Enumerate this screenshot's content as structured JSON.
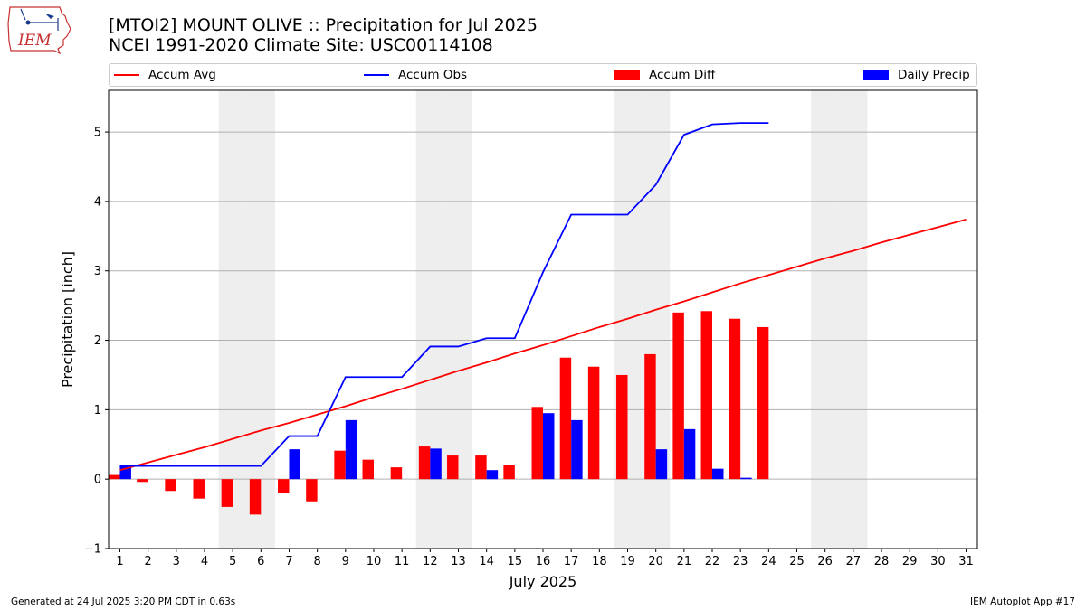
{
  "header": {
    "title_line1": "[MTOI2] MOUNT OLIVE :: Precipitation for Jul 2025",
    "title_line2": "NCEI 1991-2020 Climate Site: USC00114108",
    "logo_text": "IEM"
  },
  "legend": {
    "accum_avg": "Accum Avg",
    "accum_obs": "Accum Obs",
    "accum_diff": "Accum Diff",
    "daily_precip": "Daily Precip"
  },
  "colors": {
    "accum_avg": "#ff0000",
    "accum_obs": "#0000ff",
    "accum_diff": "#ff0000",
    "daily_precip": "#0000ff",
    "weekend_shade": "#eeeeee",
    "grid": "#b0b0b0"
  },
  "chart_data": {
    "type": "bar",
    "xlabel": "July 2025",
    "ylabel": "Precipitation [inch]",
    "x": [
      1,
      2,
      3,
      4,
      5,
      6,
      7,
      8,
      9,
      10,
      11,
      12,
      13,
      14,
      15,
      16,
      17,
      18,
      19,
      20,
      21,
      22,
      23,
      24,
      25,
      26,
      27,
      28,
      29,
      30,
      31
    ],
    "ylim": [
      -1,
      5.6
    ],
    "yticks": [
      -1,
      0,
      1,
      2,
      3,
      4,
      5
    ],
    "ytick_labels": [
      "−1",
      "0",
      "1",
      "2",
      "3",
      "4",
      "5"
    ],
    "grid": "y",
    "legend_position": "top",
    "shaded_days": [
      5,
      6,
      12,
      13,
      19,
      20,
      26,
      27
    ],
    "series": [
      {
        "name": "Accum Avg",
        "kind": "line",
        "x": [
          1,
          2,
          3,
          4,
          5,
          6,
          7,
          8,
          9,
          10,
          11,
          12,
          13,
          14,
          15,
          16,
          17,
          18,
          19,
          20,
          21,
          22,
          23,
          24,
          25,
          26,
          27,
          28,
          29,
          30,
          31
        ],
        "values": [
          0.13,
          0.24,
          0.35,
          0.46,
          0.58,
          0.7,
          0.81,
          0.93,
          1.05,
          1.18,
          1.3,
          1.43,
          1.56,
          1.68,
          1.81,
          1.93,
          2.06,
          2.19,
          2.31,
          2.44,
          2.56,
          2.69,
          2.82,
          2.94,
          3.06,
          3.18,
          3.29,
          3.41,
          3.52,
          3.63,
          3.74
        ]
      },
      {
        "name": "Accum Obs",
        "kind": "line",
        "x": [
          1,
          2,
          3,
          4,
          5,
          6,
          7,
          8,
          9,
          10,
          11,
          12,
          13,
          14,
          15,
          16,
          17,
          18,
          19,
          20,
          21,
          22,
          23,
          24
        ],
        "values": [
          0.19,
          0.19,
          0.19,
          0.19,
          0.19,
          0.19,
          0.62,
          0.62,
          1.47,
          1.47,
          1.47,
          1.91,
          1.91,
          2.03,
          2.03,
          2.98,
          3.81,
          3.81,
          3.81,
          4.24,
          4.96,
          5.11,
          5.13,
          5.13
        ]
      },
      {
        "name": "Accum Diff",
        "kind": "bar",
        "x": [
          1,
          2,
          3,
          4,
          5,
          6,
          7,
          8,
          9,
          10,
          11,
          12,
          13,
          14,
          15,
          16,
          17,
          18,
          19,
          20,
          21,
          22,
          23,
          24
        ],
        "values": [
          0.06,
          -0.04,
          -0.17,
          -0.28,
          -0.4,
          -0.51,
          -0.2,
          -0.32,
          0.41,
          0.28,
          0.17,
          0.47,
          0.34,
          0.34,
          0.21,
          1.04,
          1.75,
          1.62,
          1.5,
          1.8,
          2.4,
          2.42,
          2.31,
          2.19
        ]
      },
      {
        "name": "Daily Precip",
        "kind": "bar",
        "x": [
          1,
          2,
          3,
          4,
          5,
          6,
          7,
          8,
          9,
          10,
          11,
          12,
          13,
          14,
          15,
          16,
          17,
          18,
          19,
          20,
          21,
          22,
          23,
          24
        ],
        "values": [
          0.19,
          0,
          0,
          0,
          0,
          0,
          0.43,
          0,
          0.85,
          0,
          0,
          0.44,
          0,
          0.13,
          0,
          0.95,
          0.85,
          0,
          0,
          0.43,
          0.72,
          0.15,
          0.02,
          0
        ]
      }
    ]
  },
  "footer": {
    "left": "Generated at 24 Jul 2025 3:20 PM CDT in 0.63s",
    "right": "IEM Autoplot App #17"
  }
}
